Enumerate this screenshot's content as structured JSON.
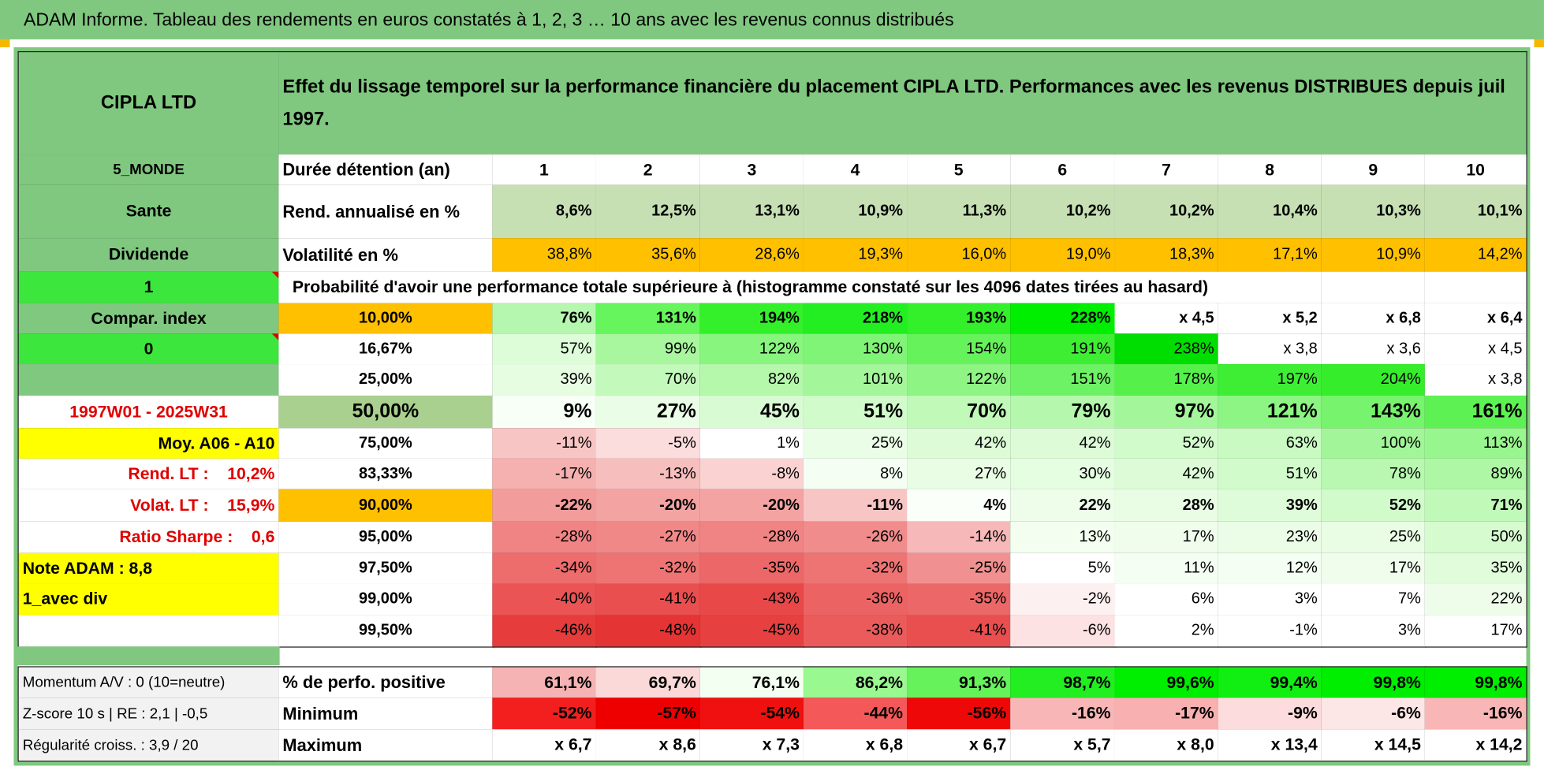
{
  "header": {
    "title": "ADAM Informe. Tableau des rendements en euros constatés à 1, 2, 3 … 10 ans avec les revenus connus distribués"
  },
  "table": {
    "name": "CIPLA LTD",
    "description": "Effet du lissage temporel sur la performance financière du placement CIPLA LTD. Performances avec les revenus DISTRIBUES depuis juil 1997.",
    "rows": [
      {
        "side": "5_MONDE",
        "label": "Durée détention (an)",
        "cells": [
          "1",
          "2",
          "3",
          "4",
          "5",
          "6",
          "7",
          "8",
          "9",
          "10"
        ]
      },
      {
        "side": "Sante",
        "label": "Rend. annualisé en %",
        "cells": [
          "8,6%",
          "12,5%",
          "13,1%",
          "10,9%",
          "11,3%",
          "10,2%",
          "10,2%",
          "10,4%",
          "10,3%",
          "10,1%"
        ]
      },
      {
        "side": "Dividende",
        "label": "Volatilité en %",
        "cells": [
          "38,8%",
          "35,6%",
          "28,6%",
          "19,3%",
          "16,0%",
          "19,0%",
          "18,3%",
          "17,1%",
          "10,9%",
          "14,2%"
        ]
      },
      {
        "side": "1",
        "text": "Probabilité d'avoir une performance totale supérieure à (histogramme constaté sur les 4096 dates tirées au hasard)"
      },
      {
        "side": "Compar. index",
        "label": "10,00%",
        "cells": [
          "76%",
          "131%",
          "194%",
          "218%",
          "193%",
          "228%",
          "x 4,5",
          "x 5,2",
          "x 6,8",
          "x 6,4"
        ]
      },
      {
        "side": "0",
        "label": "16,67%",
        "cells": [
          "57%",
          "99%",
          "122%",
          "130%",
          "154%",
          "191%",
          "238%",
          "x 3,8",
          "x 3,6",
          "x 4,5"
        ]
      },
      {
        "label": "25,00%",
        "cells": [
          "39%",
          "70%",
          "82%",
          "101%",
          "122%",
          "151%",
          "178%",
          "197%",
          "204%",
          "x 3,8"
        ]
      },
      {
        "side": "1997W01 - 2025W31",
        "label": "50,00%",
        "cells": [
          "9%",
          "27%",
          "45%",
          "51%",
          "70%",
          "79%",
          "97%",
          "121%",
          "143%",
          "161%"
        ]
      },
      {
        "side": "Moy. A06 - A10",
        "label": "75,00%",
        "cells": [
          "-11%",
          "-5%",
          "1%",
          "25%",
          "42%",
          "42%",
          "52%",
          "63%",
          "100%",
          "113%"
        ]
      },
      {
        "side": "Rend. LT :    10,2%",
        "label": "83,33%",
        "cells": [
          "-17%",
          "-13%",
          "-8%",
          "8%",
          "27%",
          "30%",
          "42%",
          "51%",
          "78%",
          "89%"
        ]
      },
      {
        "side": "Volat. LT :    15,9%",
        "label": "90,00%",
        "cells": [
          "-22%",
          "-20%",
          "-20%",
          "-11%",
          "4%",
          "22%",
          "28%",
          "39%",
          "52%",
          "71%"
        ]
      },
      {
        "side": "Ratio Sharpe :    0,6",
        "label": "95,00%",
        "cells": [
          "-28%",
          "-27%",
          "-28%",
          "-26%",
          "-14%",
          "13%",
          "17%",
          "23%",
          "25%",
          "50%"
        ]
      },
      {
        "side": "Note ADAM : 8,8",
        "label": "97,50%",
        "cells": [
          "-34%",
          "-32%",
          "-35%",
          "-32%",
          "-25%",
          "5%",
          "11%",
          "12%",
          "17%",
          "35%"
        ]
      },
      {
        "side": "1_avec div",
        "label": "99,00%",
        "cells": [
          "-40%",
          "-41%",
          "-43%",
          "-36%",
          "-35%",
          "-2%",
          "6%",
          "3%",
          "7%",
          "22%"
        ]
      },
      {
        "label": "99,50%",
        "cells": [
          "-46%",
          "-48%",
          "-45%",
          "-38%",
          "-41%",
          "-6%",
          "2%",
          "-1%",
          "3%",
          "17%"
        ]
      },
      {
        "side": "Momentum A/V : 0 (10=neutre)",
        "label": "% de perfo. positive",
        "cells": [
          "61,1%",
          "69,7%",
          "76,1%",
          "86,2%",
          "91,3%",
          "98,7%",
          "99,6%",
          "99,4%",
          "99,8%",
          "99,8%"
        ]
      },
      {
        "side": "Z-score 10 s | RE : 2,1 | -0,5",
        "label": "Minimum",
        "cells": [
          "-52%",
          "-57%",
          "-54%",
          "-44%",
          "-56%",
          "-16%",
          "-17%",
          "-9%",
          "-6%",
          "-16%"
        ]
      },
      {
        "side": "Régularité croiss. : 3,9 / 20",
        "label": "Maximum",
        "cells": [
          "x 6,7",
          "x 8,6",
          "x 7,3",
          "x 6,8",
          "x 6,7",
          "x 5,7",
          "x 8,0",
          "x 13,4",
          "x 14,5",
          "x 14,2"
        ]
      }
    ]
  }
}
